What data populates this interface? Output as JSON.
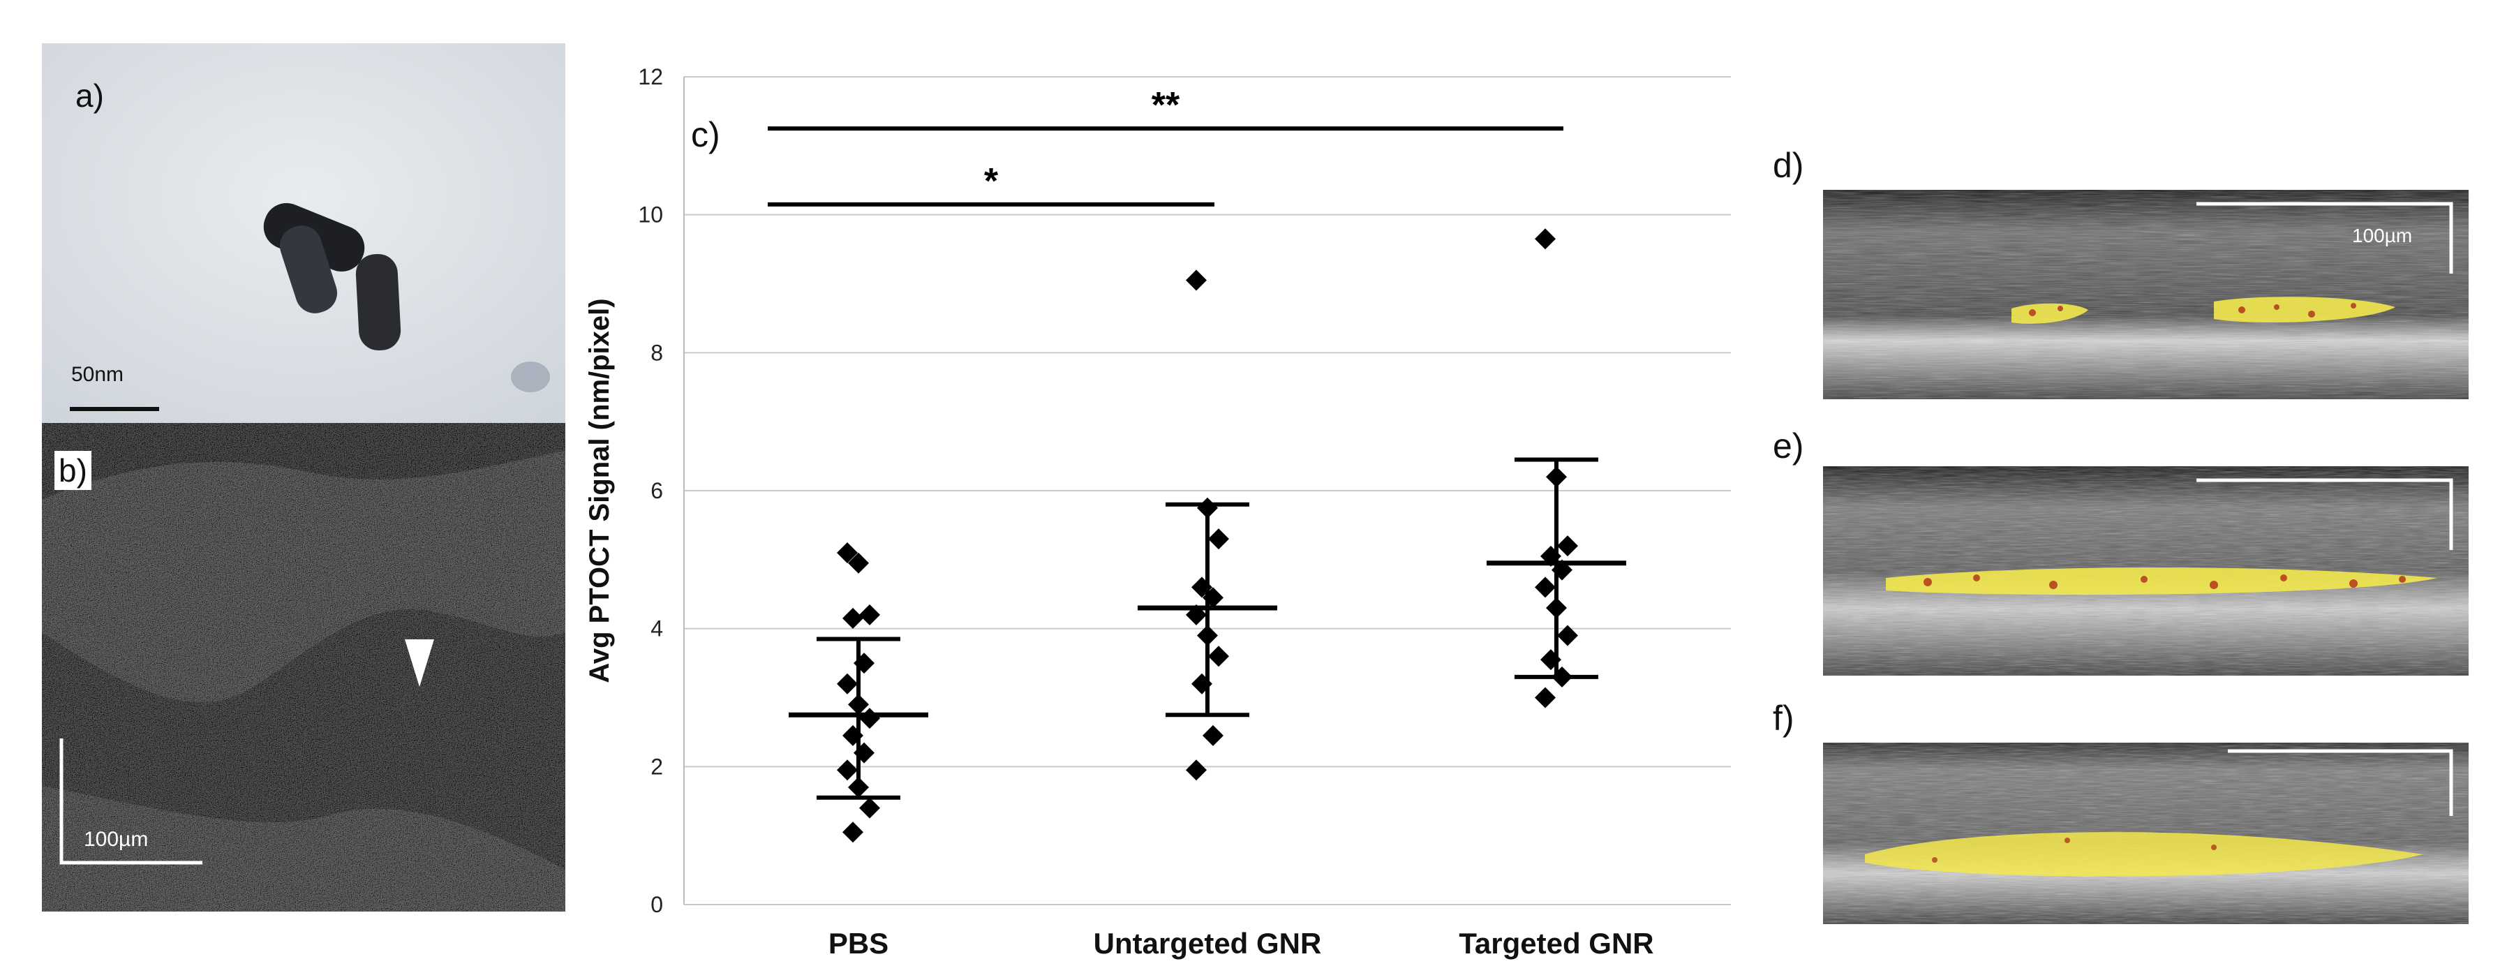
{
  "panels": {
    "a": {
      "label": "a)",
      "scale_bar": "50nm"
    },
    "b": {
      "label": "b)",
      "scale_bar": "100µm"
    },
    "c": {
      "label": "c)"
    },
    "d": {
      "label": "d)",
      "scale_bar": "100µm"
    },
    "e": {
      "label": "e)"
    },
    "f": {
      "label": "f)"
    }
  },
  "chart_data": {
    "type": "scatter",
    "title": "",
    "xlabel": "",
    "ylabel": "Avg PTOCT Signal (nm/pixel)",
    "ylim": [
      0,
      12
    ],
    "yticks": [
      "0",
      "2",
      "4",
      "6",
      "8",
      "10",
      "12"
    ],
    "grid": true,
    "categories": [
      "PBS",
      "Untargeted GNR",
      "Targeted GNR"
    ],
    "groups": [
      {
        "category": "PBS",
        "mean": 2.75,
        "upper": 3.85,
        "lower": 1.55,
        "points": [
          5.1,
          4.95,
          4.2,
          4.15,
          3.5,
          3.2,
          2.9,
          2.7,
          2.45,
          2.2,
          1.95,
          1.7,
          1.4,
          1.05
        ]
      },
      {
        "category": "Untargeted GNR",
        "mean": 4.3,
        "upper": 5.8,
        "lower": 2.75,
        "points": [
          9.05,
          5.75,
          5.3,
          4.6,
          4.45,
          4.2,
          3.9,
          3.6,
          3.2,
          2.45,
          1.95
        ]
      },
      {
        "category": "Targeted GNR",
        "mean": 4.95,
        "upper": 6.45,
        "lower": 3.3,
        "points": [
          9.65,
          6.2,
          5.2,
          5.05,
          4.85,
          4.6,
          4.3,
          3.9,
          3.55,
          3.3,
          3.0
        ]
      }
    ],
    "significance": [
      {
        "label": "*",
        "y": 10.15,
        "from": "PBS",
        "to": "Untargeted GNR"
      },
      {
        "label": "**",
        "y": 11.25,
        "from": "PBS",
        "to": "Targeted GNR"
      }
    ]
  }
}
